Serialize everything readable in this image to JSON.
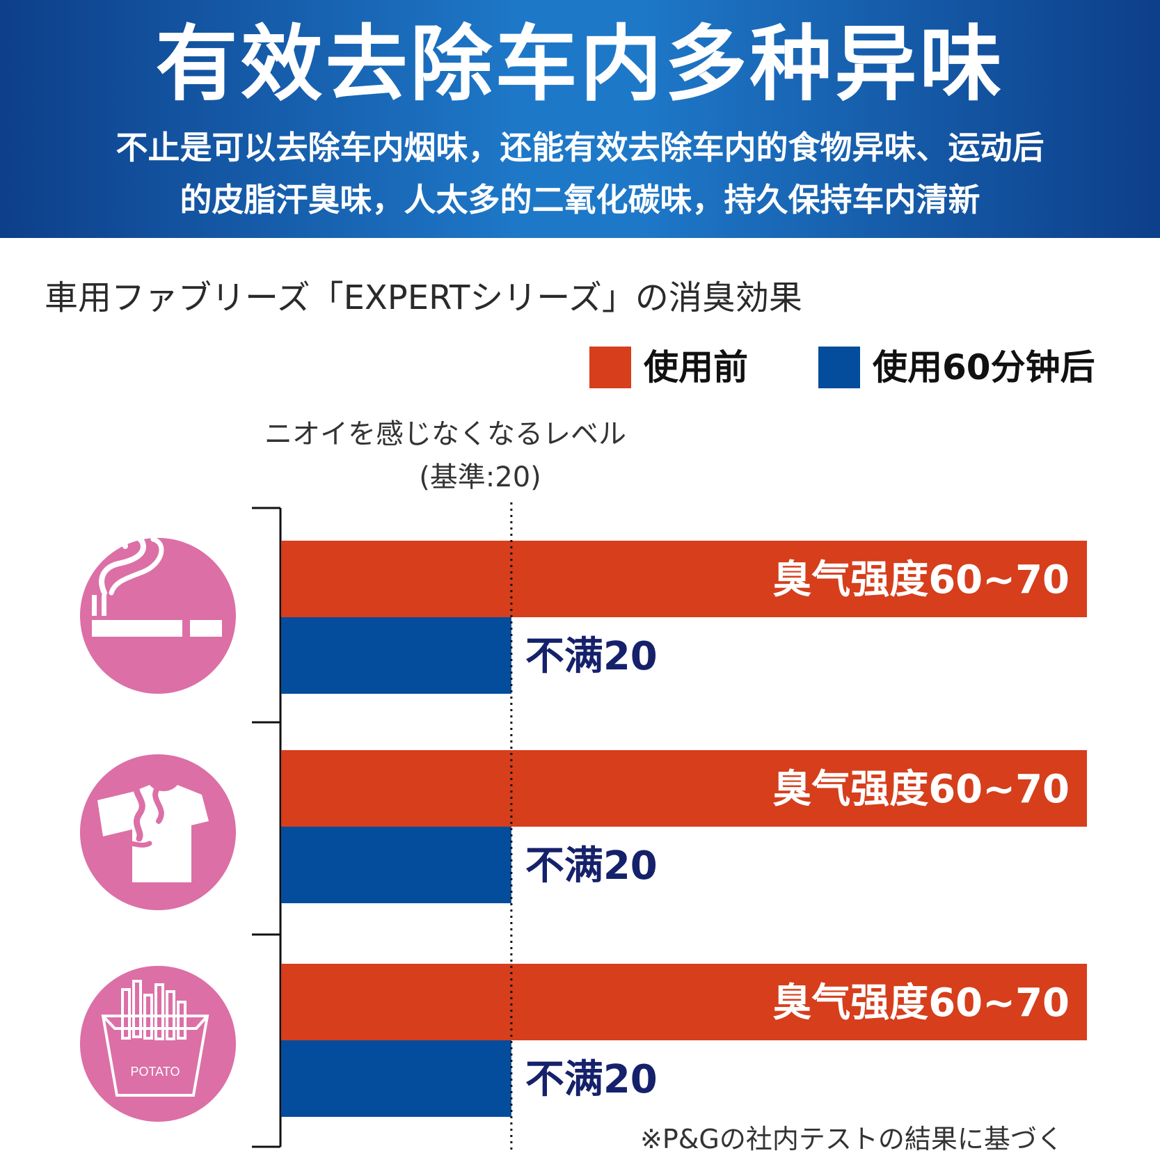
{
  "header": {
    "title": "有效去除车内多种异味",
    "subtitle_line1": "不止是可以去除车内烟味，还能有效去除车内的食物异味、运动后",
    "subtitle_line2": "的皮脂汗臭味，人太多的二氧化碳味，持久保持车内清新"
  },
  "chart_title": "車用ファブリーズ「EXPERTシリーズ」の消臭効果",
  "legend": {
    "before_label": "使用前",
    "after_label": "使用60分钟后"
  },
  "reference": {
    "label_line1": "ニオイを感じなくなるレベル",
    "label_line2": "(基準:20)"
  },
  "colors": {
    "header_blue": "#1e78c8",
    "before": "#d63e1c",
    "after": "#044c9c",
    "after_text": "#16216b",
    "icon_circle": "#dc6fa6"
  },
  "chart_data": {
    "type": "bar",
    "orientation": "horizontal",
    "reference_line": 20,
    "categories": [
      {
        "name": "cigarette-smoke",
        "icon": "cigarette-icon"
      },
      {
        "name": "sweat-odor",
        "icon": "tshirt-odor-icon"
      },
      {
        "name": "food-odor",
        "icon": "fries-icon"
      }
    ],
    "series": [
      {
        "name": "使用前",
        "values": [
          70,
          70,
          70
        ],
        "labels": [
          "臭气强度60~70",
          "臭气强度60~70",
          "臭气强度60~70"
        ]
      },
      {
        "name": "使用60分钟后",
        "values": [
          20,
          20,
          20
        ],
        "labels": [
          "不满20",
          "不满20",
          "不满20"
        ]
      }
    ],
    "xlim": [
      0,
      70
    ],
    "legend_position": "top-right"
  },
  "icon_text": {
    "potato": "POTATO"
  },
  "footnote": "※P&Gの社内テストの結果に基づく"
}
